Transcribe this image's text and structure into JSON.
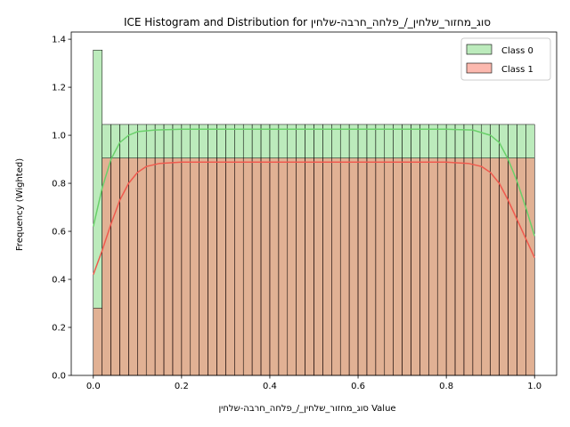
{
  "chart_data": {
    "type": "histogram",
    "title": "ICE Histogram and Distribution for סוג_מחזור_שלחין_/_פלחה_חרבה-שלחין",
    "xlabel": "סוג_מחזור_שלחין_/_פלחה_חרבה-שלחין Value",
    "ylabel": "Frequency (Wighted)",
    "xlim": [
      -0.05,
      1.05
    ],
    "ylim": [
      0,
      1.43
    ],
    "xticks": [
      "0.0",
      "0.2",
      "0.4",
      "0.6",
      "0.8",
      "1.0"
    ],
    "xtick_values": [
      0.0,
      0.2,
      0.4,
      0.6,
      0.8,
      1.0
    ],
    "yticks": [
      "0.0",
      "0.2",
      "0.4",
      "0.6",
      "0.8",
      "1.0",
      "1.2",
      "1.4"
    ],
    "ytick_values": [
      0.0,
      0.2,
      0.4,
      0.6,
      0.8,
      1.0,
      1.2,
      1.4
    ],
    "bins": {
      "start": 0.0,
      "end": 1.0,
      "count": 50
    },
    "legend_position": "upper right",
    "grid": false,
    "series": [
      {
        "name": "Class 0",
        "fill_color": "#90dd90",
        "line_color": "#6ad06a",
        "first_bin_value": 1.355,
        "other_bins_value": 1.045,
        "kde": [
          [
            0.0,
            0.62
          ],
          [
            0.02,
            0.78
          ],
          [
            0.04,
            0.9
          ],
          [
            0.06,
            0.97
          ],
          [
            0.08,
            1.0
          ],
          [
            0.1,
            1.015
          ],
          [
            0.14,
            1.022
          ],
          [
            0.2,
            1.025
          ],
          [
            0.5,
            1.025
          ],
          [
            0.8,
            1.025
          ],
          [
            0.86,
            1.022
          ],
          [
            0.9,
            1.0
          ],
          [
            0.92,
            0.97
          ],
          [
            0.94,
            0.9
          ],
          [
            0.96,
            0.81
          ],
          [
            0.98,
            0.7
          ],
          [
            1.0,
            0.58
          ]
        ]
      },
      {
        "name": "Class 1",
        "fill_color": "#fa8a7a",
        "line_color": "#f05a4e",
        "first_bin_value": 0.28,
        "other_bins_value": 0.905,
        "kde": [
          [
            0.0,
            0.42
          ],
          [
            0.02,
            0.52
          ],
          [
            0.04,
            0.63
          ],
          [
            0.06,
            0.73
          ],
          [
            0.08,
            0.8
          ],
          [
            0.1,
            0.845
          ],
          [
            0.12,
            0.87
          ],
          [
            0.15,
            0.883
          ],
          [
            0.2,
            0.888
          ],
          [
            0.5,
            0.888
          ],
          [
            0.8,
            0.888
          ],
          [
            0.85,
            0.883
          ],
          [
            0.88,
            0.87
          ],
          [
            0.9,
            0.845
          ],
          [
            0.92,
            0.8
          ],
          [
            0.94,
            0.73
          ],
          [
            0.96,
            0.65
          ],
          [
            0.98,
            0.57
          ],
          [
            1.0,
            0.49
          ]
        ]
      }
    ]
  }
}
